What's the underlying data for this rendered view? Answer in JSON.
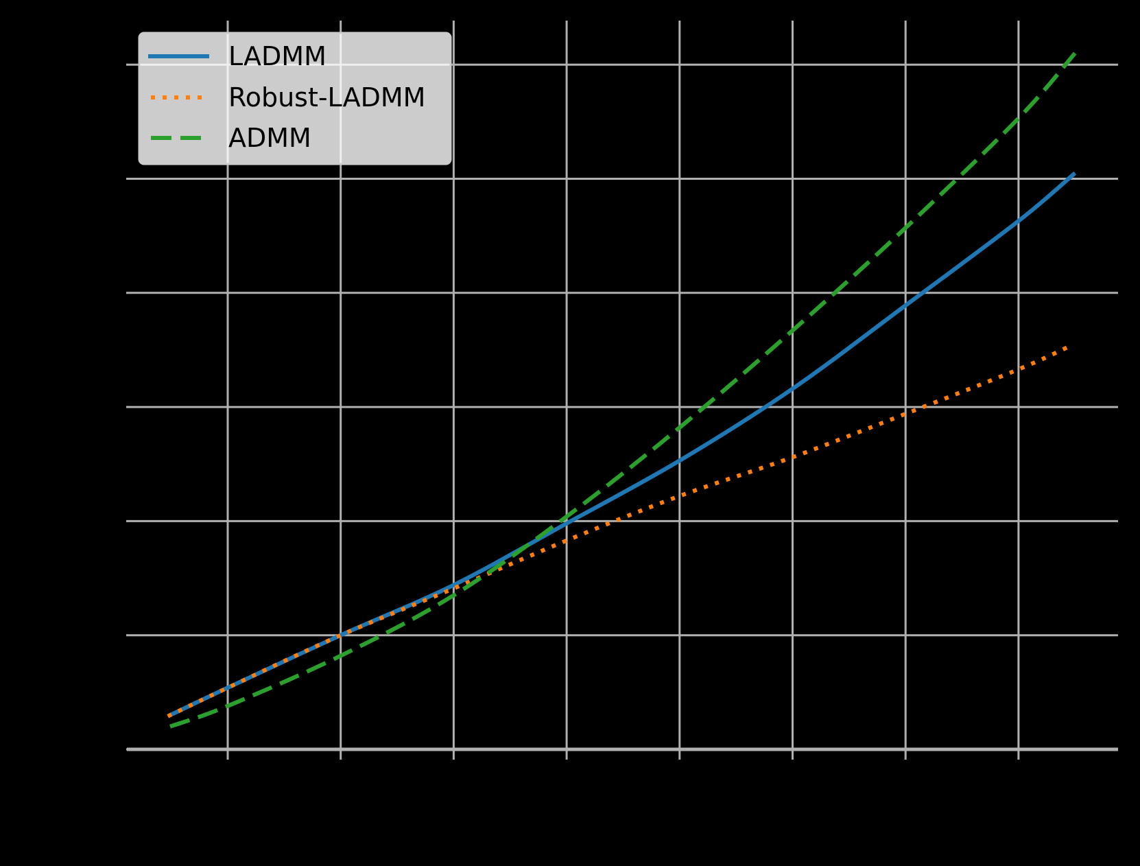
{
  "chart_data": {
    "type": "line",
    "title": "",
    "xlabel": "",
    "ylabel": "",
    "grid": true,
    "legend_position": "upper left",
    "x_ticks": [
      1,
      2,
      3,
      4,
      5,
      6,
      7,
      8
    ],
    "y_ticks": [
      0,
      1,
      2,
      3,
      4,
      5,
      6
    ],
    "tick_labels_visible": false,
    "xlim": [
      -0.9,
      9.0
    ],
    "ylim": [
      -0.25,
      6.4
    ],
    "series": [
      {
        "name": "LADMM",
        "color": "#1f77b4",
        "style": "solid",
        "x": [
          0.47,
          1,
          2,
          3,
          4,
          5,
          6,
          7,
          8,
          8.5
        ],
        "y": [
          0.29,
          0.54,
          1.0,
          1.44,
          1.98,
          2.53,
          3.16,
          3.89,
          4.63,
          5.05
        ]
      },
      {
        "name": "Robust-LADMM",
        "color": "#ff7f0e",
        "style": "dotted",
        "x": [
          0.47,
          1,
          2,
          3,
          4,
          5,
          6,
          7,
          8,
          8.47
        ],
        "y": [
          0.29,
          0.54,
          1.0,
          1.41,
          1.83,
          2.22,
          2.56,
          2.94,
          3.33,
          3.54
        ]
      },
      {
        "name": "ADMM",
        "color": "#2ca02c",
        "style": "dashed",
        "x": [
          0.49,
          1,
          2,
          3,
          4,
          5,
          6,
          7,
          8,
          8.5
        ],
        "y": [
          0.2,
          0.38,
          0.82,
          1.35,
          2.04,
          2.82,
          3.67,
          4.57,
          5.53,
          6.1
        ]
      }
    ]
  },
  "legend": {
    "items": [
      {
        "label": "LADMM",
        "color": "#1f77b4",
        "style": "solid"
      },
      {
        "label": "Robust-LADMM",
        "color": "#ff7f0e",
        "style": "dotted"
      },
      {
        "label": "ADMM",
        "color": "#2ca02c",
        "style": "dashed"
      }
    ]
  },
  "colors": {
    "background": "#000000",
    "grid": "#b0b0b0",
    "legend_bg": "#ffffff"
  }
}
